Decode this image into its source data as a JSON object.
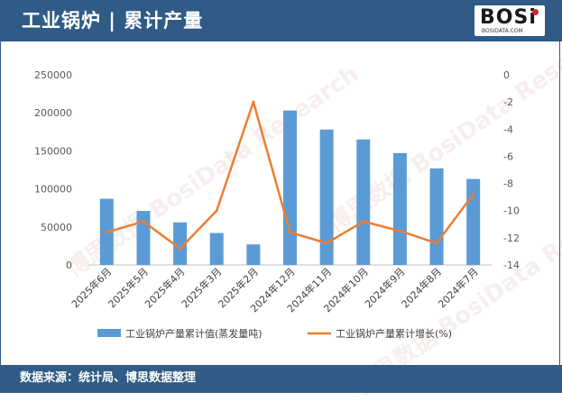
{
  "header": {
    "title": "工业锅炉 | 累计产量"
  },
  "logo": {
    "text": "BOSi",
    "subtitle": "BOSIDATA.COM"
  },
  "footer": {
    "source": "数据来源：统计局、博思数据整理"
  },
  "watermark": {
    "text": "博思数据 BosiData Research"
  },
  "colors": {
    "bar": "#5b9bd5",
    "line": "#ed7d31",
    "header": "#2f5b86"
  },
  "chart_data": {
    "type": "bar",
    "categories": [
      "2025年6月",
      "2025年5月",
      "2025年4月",
      "2025年3月",
      "2025年2月",
      "2024年12月",
      "2024年11月",
      "2024年10月",
      "2024年9月",
      "2024年8月",
      "2024年7月"
    ],
    "series": [
      {
        "name": "工业锅炉产量累计值(蒸发量吨)",
        "type": "bar",
        "axis": "left",
        "values": [
          87000,
          71000,
          56000,
          42000,
          27000,
          203000,
          178000,
          165000,
          147000,
          127000,
          113000
        ]
      },
      {
        "name": "工业锅炉产量累计增长(%)",
        "type": "line",
        "axis": "right",
        "values": [
          -11.6,
          -10.8,
          -12.8,
          -10.0,
          -2.0,
          -11.6,
          -12.4,
          -10.8,
          -11.5,
          -12.4,
          -8.8
        ]
      }
    ],
    "y_left": {
      "ylim": [
        0,
        250000
      ],
      "ticks": [
        "0",
        "50000",
        "100000",
        "150000",
        "200000",
        "250000"
      ]
    },
    "y_right": {
      "ylim": [
        -14,
        0
      ],
      "ticks": [
        "0",
        "-2",
        "-4",
        "-6",
        "-8",
        "-10",
        "-12",
        "-14"
      ]
    },
    "legend_position": "bottom",
    "grid": false
  }
}
